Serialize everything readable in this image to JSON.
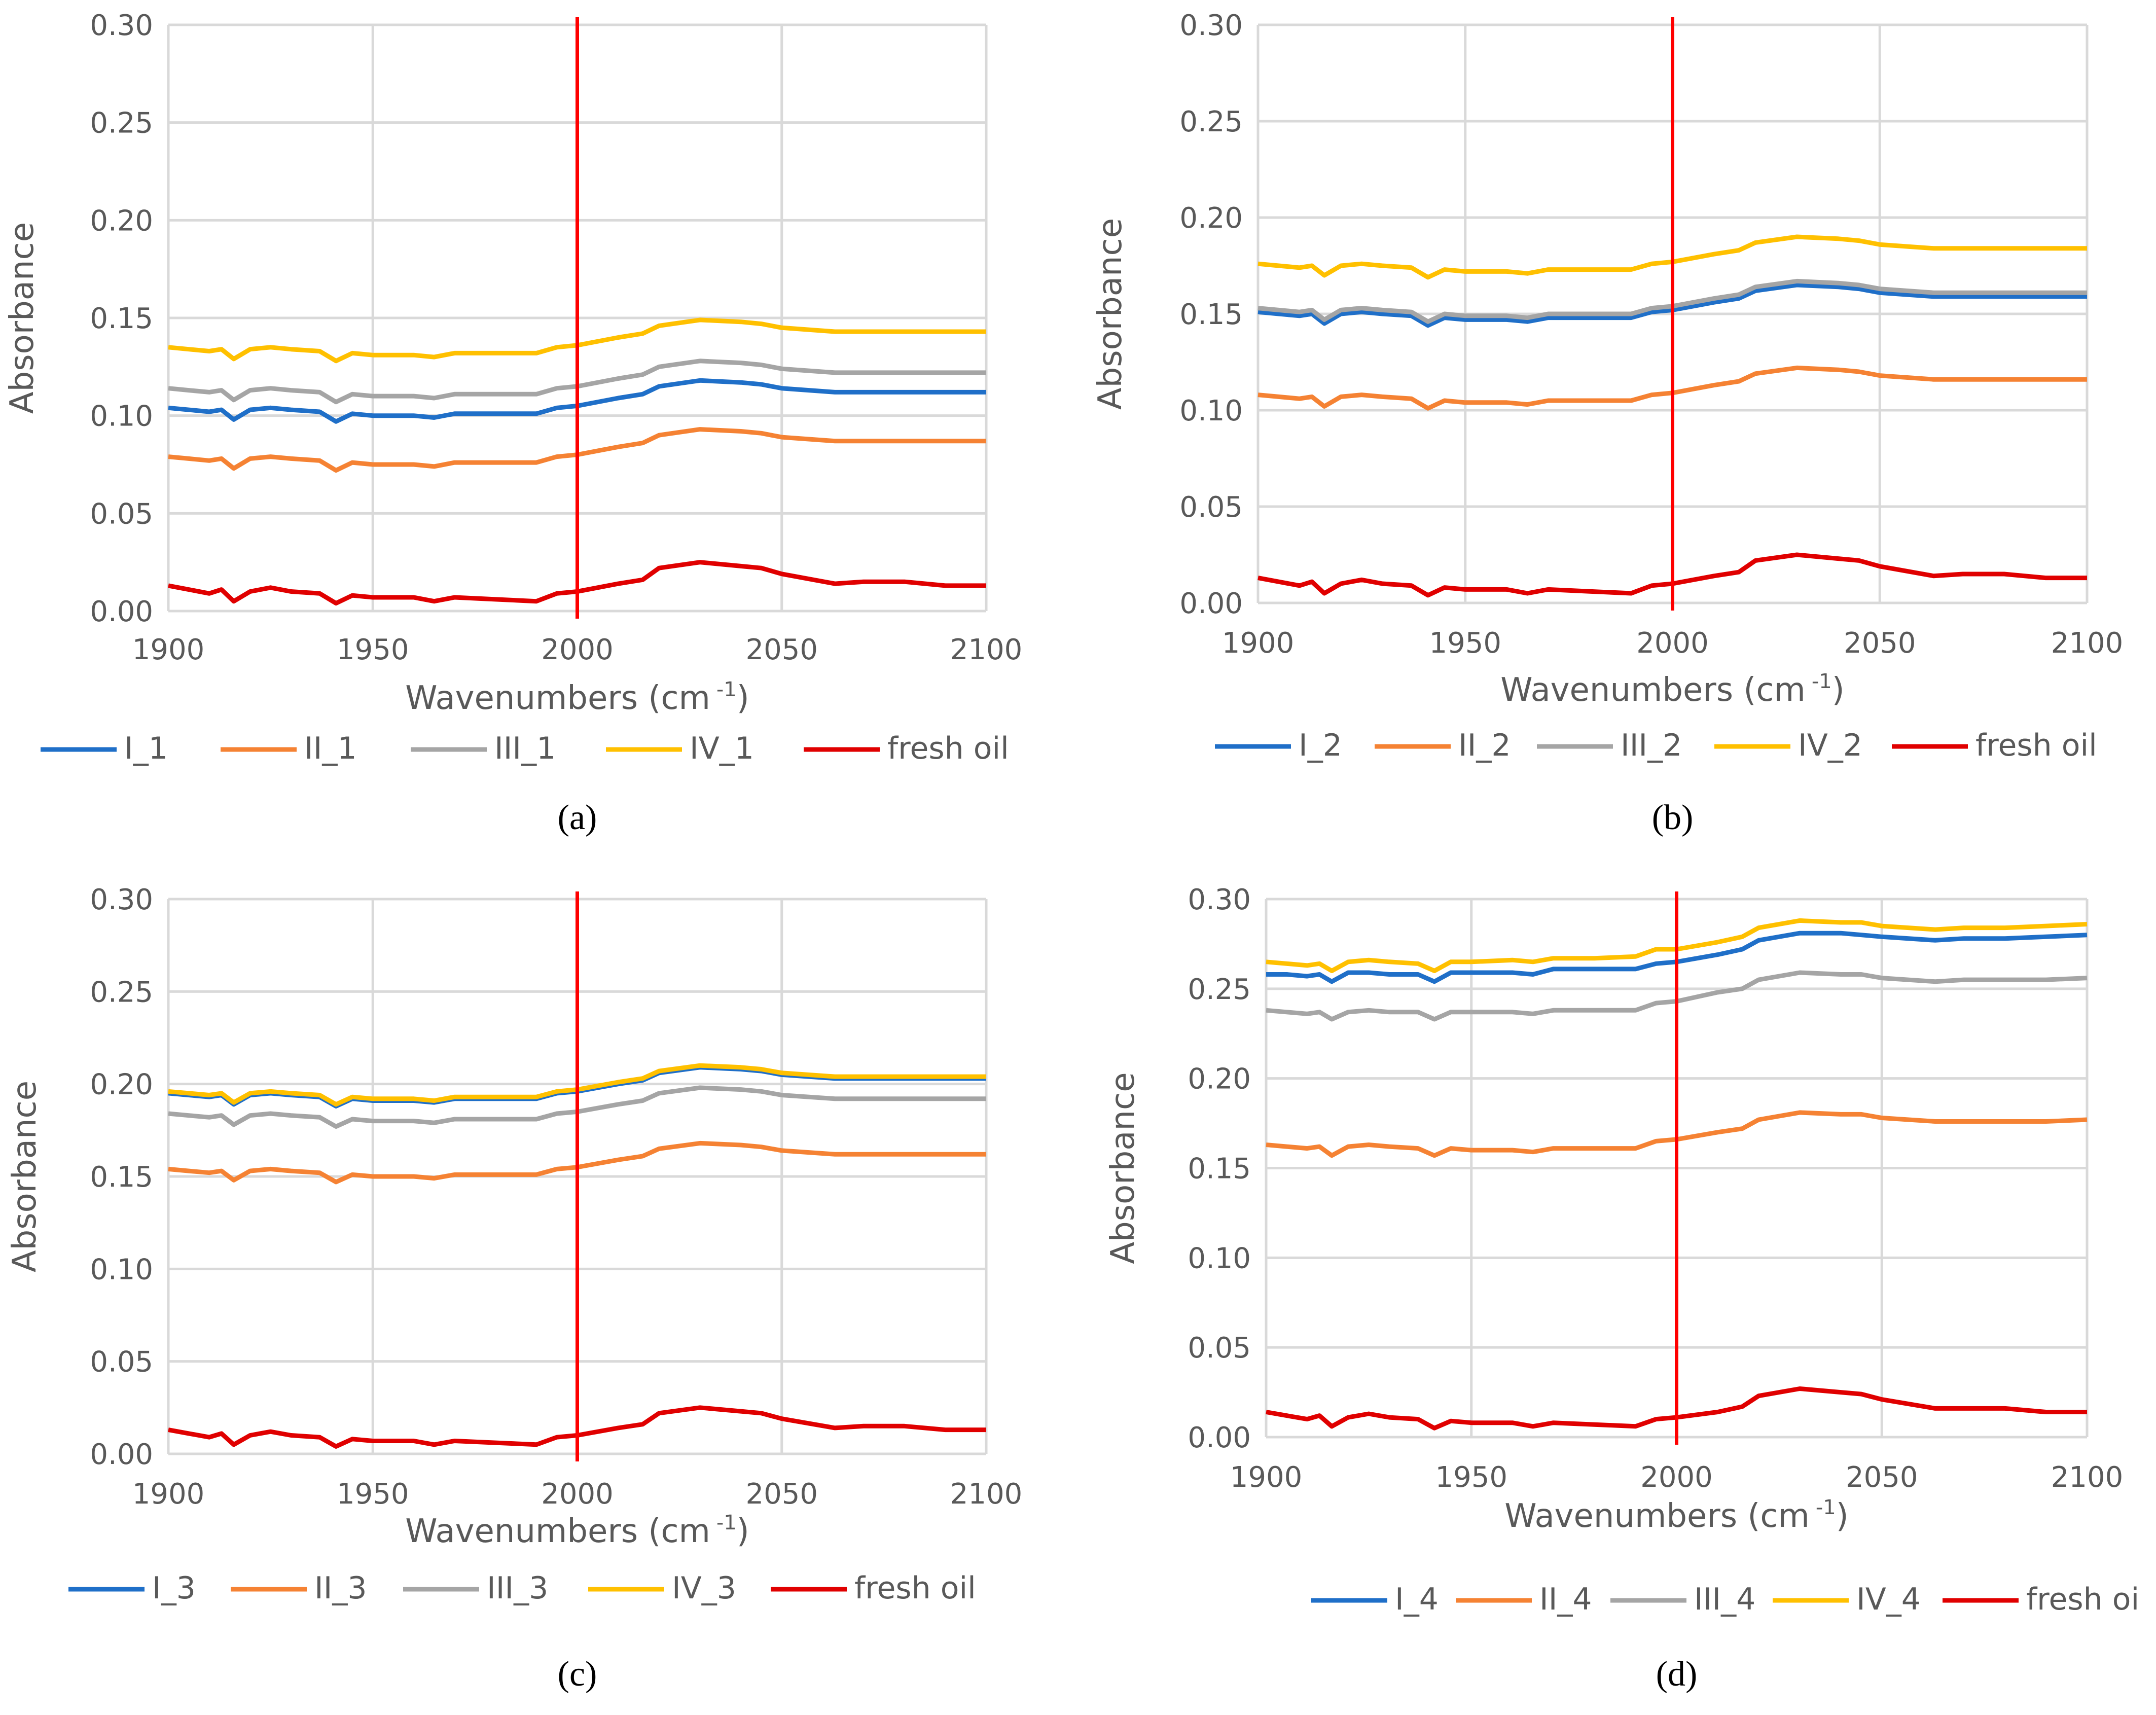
{
  "chart_data": [
    {
      "type": "line",
      "panel_label": "(a)",
      "caption_letter": "a",
      "xlabel": "Wavenumbers (cm",
      "xlabel_sup": "-1",
      "xlabel_end": ")",
      "ylabel": "Absorbance",
      "xlim": [
        1900,
        2100
      ],
      "ylim": [
        0,
        0.3
      ],
      "xticks": [
        "1900",
        "1950",
        "2000",
        "2050",
        "2100"
      ],
      "yticks": [
        "0.00",
        "0.05",
        "0.10",
        "0.15",
        "0.20",
        "0.25",
        "0.30"
      ],
      "grid": true,
      "marker_line_x": 2000,
      "marker_line_color": "#FF0000",
      "legend_position": "bottom",
      "x": [
        1900,
        1905,
        1910,
        1913,
        1916,
        1920,
        1925,
        1930,
        1937,
        1941,
        1945,
        1950,
        1960,
        1965,
        1970,
        1980,
        1990,
        1995,
        2000,
        2010,
        2016,
        2020,
        2030,
        2040,
        2045,
        2050,
        2063,
        2070,
        2080,
        2090,
        2100
      ],
      "series": [
        {
          "name": "I_1",
          "color": "#1F6FC8",
          "values": [
            0.104,
            0.103,
            0.102,
            0.103,
            0.098,
            0.103,
            0.104,
            0.103,
            0.102,
            0.097,
            0.101,
            0.1,
            0.1,
            0.099,
            0.101,
            0.101,
            0.101,
            0.104,
            0.105,
            0.109,
            0.111,
            0.115,
            0.118,
            0.117,
            0.116,
            0.114,
            0.112,
            0.112,
            0.112,
            0.112,
            0.112
          ]
        },
        {
          "name": "II_1",
          "color": "#F58233",
          "values": [
            0.079,
            0.078,
            0.077,
            0.078,
            0.073,
            0.078,
            0.079,
            0.078,
            0.077,
            0.072,
            0.076,
            0.075,
            0.075,
            0.074,
            0.076,
            0.076,
            0.076,
            0.079,
            0.08,
            0.084,
            0.086,
            0.09,
            0.093,
            0.092,
            0.091,
            0.089,
            0.087,
            0.087,
            0.087,
            0.087,
            0.087
          ]
        },
        {
          "name": "III_1",
          "color": "#A5A5A5",
          "values": [
            0.114,
            0.113,
            0.112,
            0.113,
            0.108,
            0.113,
            0.114,
            0.113,
            0.112,
            0.107,
            0.111,
            0.11,
            0.11,
            0.109,
            0.111,
            0.111,
            0.111,
            0.114,
            0.115,
            0.119,
            0.121,
            0.125,
            0.128,
            0.127,
            0.126,
            0.124,
            0.122,
            0.122,
            0.122,
            0.122,
            0.122
          ]
        },
        {
          "name": "IV_1",
          "color": "#FFC000",
          "values": [
            0.135,
            0.134,
            0.133,
            0.134,
            0.129,
            0.134,
            0.135,
            0.134,
            0.133,
            0.128,
            0.132,
            0.131,
            0.131,
            0.13,
            0.132,
            0.132,
            0.132,
            0.135,
            0.136,
            0.14,
            0.142,
            0.146,
            0.149,
            0.148,
            0.147,
            0.145,
            0.143,
            0.143,
            0.143,
            0.143,
            0.143
          ]
        },
        {
          "name": "fresh oil",
          "color": "#E00000",
          "values": [
            0.013,
            0.011,
            0.009,
            0.011,
            0.005,
            0.01,
            0.012,
            0.01,
            0.009,
            0.004,
            0.008,
            0.007,
            0.007,
            0.005,
            0.007,
            0.006,
            0.005,
            0.009,
            0.01,
            0.014,
            0.016,
            0.022,
            0.025,
            0.023,
            0.022,
            0.019,
            0.014,
            0.015,
            0.015,
            0.013,
            0.013
          ]
        }
      ]
    },
    {
      "type": "line",
      "panel_label": "(b)",
      "caption_letter": "b",
      "xlabel": "Wavenumbers (cm",
      "xlabel_sup": "-1",
      "xlabel_end": ")",
      "ylabel": "Absorbance",
      "xlim": [
        1900,
        2100
      ],
      "ylim": [
        0,
        0.3
      ],
      "xticks": [
        "1900",
        "1950",
        "2000",
        "2050",
        "2100"
      ],
      "yticks": [
        "0.00",
        "0.05",
        "0.10",
        "0.15",
        "0.20",
        "0.25",
        "0.30"
      ],
      "grid": true,
      "marker_line_x": 2000,
      "marker_line_color": "#FF0000",
      "legend_position": "bottom",
      "x": [
        1900,
        1905,
        1910,
        1913,
        1916,
        1920,
        1925,
        1930,
        1937,
        1941,
        1945,
        1950,
        1960,
        1965,
        1970,
        1980,
        1990,
        1995,
        2000,
        2010,
        2016,
        2020,
        2030,
        2040,
        2045,
        2050,
        2063,
        2070,
        2080,
        2090,
        2100
      ],
      "series": [
        {
          "name": "I_2",
          "color": "#1F6FC8",
          "values": [
            0.151,
            0.15,
            0.149,
            0.15,
            0.145,
            0.15,
            0.151,
            0.15,
            0.149,
            0.144,
            0.148,
            0.147,
            0.147,
            0.146,
            0.148,
            0.148,
            0.148,
            0.151,
            0.152,
            0.156,
            0.158,
            0.162,
            0.165,
            0.164,
            0.163,
            0.161,
            0.159,
            0.159,
            0.159,
            0.159,
            0.159
          ]
        },
        {
          "name": "II_2",
          "color": "#F58233",
          "values": [
            0.108,
            0.107,
            0.106,
            0.107,
            0.102,
            0.107,
            0.108,
            0.107,
            0.106,
            0.101,
            0.105,
            0.104,
            0.104,
            0.103,
            0.105,
            0.105,
            0.105,
            0.108,
            0.109,
            0.113,
            0.115,
            0.119,
            0.122,
            0.121,
            0.12,
            0.118,
            0.116,
            0.116,
            0.116,
            0.116,
            0.116
          ]
        },
        {
          "name": "III_2",
          "color": "#A5A5A5",
          "values": [
            0.153,
            0.152,
            0.151,
            0.152,
            0.147,
            0.152,
            0.153,
            0.152,
            0.151,
            0.146,
            0.15,
            0.149,
            0.149,
            0.148,
            0.15,
            0.15,
            0.15,
            0.153,
            0.154,
            0.158,
            0.16,
            0.164,
            0.167,
            0.166,
            0.165,
            0.163,
            0.161,
            0.161,
            0.161,
            0.161,
            0.161
          ]
        },
        {
          "name": "IV_2",
          "color": "#FFC000",
          "values": [
            0.176,
            0.175,
            0.174,
            0.175,
            0.17,
            0.175,
            0.176,
            0.175,
            0.174,
            0.169,
            0.173,
            0.172,
            0.172,
            0.171,
            0.173,
            0.173,
            0.173,
            0.176,
            0.177,
            0.181,
            0.183,
            0.187,
            0.19,
            0.189,
            0.188,
            0.186,
            0.184,
            0.184,
            0.184,
            0.184,
            0.184
          ]
        },
        {
          "name": "fresh oil",
          "color": "#E00000",
          "values": [
            0.013,
            0.011,
            0.009,
            0.011,
            0.005,
            0.01,
            0.012,
            0.01,
            0.009,
            0.004,
            0.008,
            0.007,
            0.007,
            0.005,
            0.007,
            0.006,
            0.005,
            0.009,
            0.01,
            0.014,
            0.016,
            0.022,
            0.025,
            0.023,
            0.022,
            0.019,
            0.014,
            0.015,
            0.015,
            0.013,
            0.013
          ]
        }
      ]
    },
    {
      "type": "line",
      "panel_label": "(c)",
      "caption_letter": "c",
      "xlabel": "Wavenumbers (cm",
      "xlabel_sup": "-1",
      "xlabel_end": ")",
      "ylabel": "Absorbance",
      "xlim": [
        1900,
        2100
      ],
      "ylim": [
        0,
        0.3
      ],
      "xticks": [
        "1900",
        "1950",
        "2000",
        "2050",
        "2100"
      ],
      "yticks": [
        "0.00",
        "0.05",
        "0.10",
        "0.15",
        "0.20",
        "0.25",
        "0.30"
      ],
      "grid": true,
      "marker_line_x": 2000,
      "marker_line_color": "#FF0000",
      "legend_position": "bottom",
      "x": [
        1900,
        1905,
        1910,
        1913,
        1916,
        1920,
        1925,
        1930,
        1937,
        1941,
        1945,
        1950,
        1960,
        1965,
        1970,
        1980,
        1990,
        1995,
        2000,
        2010,
        2016,
        2020,
        2030,
        2040,
        2045,
        2050,
        2063,
        2070,
        2080,
        2090,
        2100
      ],
      "series": [
        {
          "name": "I_3",
          "color": "#1F6FC8",
          "values": [
            0.195,
            0.194,
            0.193,
            0.194,
            0.189,
            0.194,
            0.195,
            0.194,
            0.193,
            0.188,
            0.192,
            0.191,
            0.191,
            0.19,
            0.192,
            0.192,
            0.192,
            0.195,
            0.196,
            0.2,
            0.202,
            0.206,
            0.209,
            0.208,
            0.207,
            0.205,
            0.203,
            0.203,
            0.203,
            0.203,
            0.203
          ]
        },
        {
          "name": "II_3",
          "color": "#F58233",
          "values": [
            0.154,
            0.153,
            0.152,
            0.153,
            0.148,
            0.153,
            0.154,
            0.153,
            0.152,
            0.147,
            0.151,
            0.15,
            0.15,
            0.149,
            0.151,
            0.151,
            0.151,
            0.154,
            0.155,
            0.159,
            0.161,
            0.165,
            0.168,
            0.167,
            0.166,
            0.164,
            0.162,
            0.162,
            0.162,
            0.162,
            0.162
          ]
        },
        {
          "name": "III_3",
          "color": "#A5A5A5",
          "values": [
            0.184,
            0.183,
            0.182,
            0.183,
            0.178,
            0.183,
            0.184,
            0.183,
            0.182,
            0.177,
            0.181,
            0.18,
            0.18,
            0.179,
            0.181,
            0.181,
            0.181,
            0.184,
            0.185,
            0.189,
            0.191,
            0.195,
            0.198,
            0.197,
            0.196,
            0.194,
            0.192,
            0.192,
            0.192,
            0.192,
            0.192
          ]
        },
        {
          "name": "IV_3",
          "color": "#FFC000",
          "values": [
            0.196,
            0.195,
            0.194,
            0.195,
            0.19,
            0.195,
            0.196,
            0.195,
            0.194,
            0.189,
            0.193,
            0.192,
            0.192,
            0.191,
            0.193,
            0.193,
            0.193,
            0.196,
            0.197,
            0.201,
            0.203,
            0.207,
            0.21,
            0.209,
            0.208,
            0.206,
            0.204,
            0.204,
            0.204,
            0.204,
            0.204
          ]
        },
        {
          "name": "fresh oil",
          "color": "#E00000",
          "values": [
            0.013,
            0.011,
            0.009,
            0.011,
            0.005,
            0.01,
            0.012,
            0.01,
            0.009,
            0.004,
            0.008,
            0.007,
            0.007,
            0.005,
            0.007,
            0.006,
            0.005,
            0.009,
            0.01,
            0.014,
            0.016,
            0.022,
            0.025,
            0.023,
            0.022,
            0.019,
            0.014,
            0.015,
            0.015,
            0.013,
            0.013
          ]
        }
      ]
    },
    {
      "type": "line",
      "panel_label": "(d)",
      "caption_letter": "d",
      "xlabel": "Wavenumbers (cm",
      "xlabel_sup": "-1",
      "xlabel_end": ")",
      "ylabel": "Absorbance",
      "xlim": [
        1900,
        2100
      ],
      "ylim": [
        0,
        0.3
      ],
      "xticks": [
        "1900",
        "1950",
        "2000",
        "2050",
        "2100"
      ],
      "yticks": [
        "0.00",
        "0.05",
        "0.10",
        "0.15",
        "0.20",
        "0.25",
        "0.30"
      ],
      "grid": true,
      "marker_line_x": 2000,
      "marker_line_color": "#FF0000",
      "legend_position": "bottom",
      "legend_truncated_label": "fresh oi",
      "x": [
        1900,
        1905,
        1910,
        1913,
        1916,
        1920,
        1925,
        1930,
        1937,
        1941,
        1945,
        1950,
        1960,
        1965,
        1970,
        1980,
        1990,
        1995,
        2000,
        2010,
        2016,
        2020,
        2030,
        2040,
        2045,
        2050,
        2063,
        2070,
        2080,
        2090,
        2100
      ],
      "series": [
        {
          "name": "I_4",
          "color": "#1F6FC8",
          "values": [
            0.258,
            0.258,
            0.257,
            0.258,
            0.254,
            0.259,
            0.259,
            0.258,
            0.258,
            0.254,
            0.259,
            0.259,
            0.259,
            0.258,
            0.261,
            0.261,
            0.261,
            0.264,
            0.265,
            0.269,
            0.272,
            0.277,
            0.281,
            0.281,
            0.28,
            0.279,
            0.277,
            0.278,
            0.278,
            0.279,
            0.28
          ]
        },
        {
          "name": "II_4",
          "color": "#F58233",
          "values": [
            0.163,
            0.162,
            0.161,
            0.162,
            0.157,
            0.162,
            0.163,
            0.162,
            0.161,
            0.157,
            0.161,
            0.16,
            0.16,
            0.159,
            0.161,
            0.161,
            0.161,
            0.165,
            0.166,
            0.17,
            0.172,
            0.177,
            0.181,
            0.18,
            0.18,
            0.178,
            0.176,
            0.176,
            0.176,
            0.176,
            0.177
          ]
        },
        {
          "name": "III_4",
          "color": "#A5A5A5",
          "values": [
            0.238,
            0.237,
            0.236,
            0.237,
            0.233,
            0.237,
            0.238,
            0.237,
            0.237,
            0.233,
            0.237,
            0.237,
            0.237,
            0.236,
            0.238,
            0.238,
            0.238,
            0.242,
            0.243,
            0.248,
            0.25,
            0.255,
            0.259,
            0.258,
            0.258,
            0.256,
            0.254,
            0.255,
            0.255,
            0.255,
            0.256
          ]
        },
        {
          "name": "IV_4",
          "color": "#FFC000",
          "values": [
            0.265,
            0.264,
            0.263,
            0.264,
            0.26,
            0.265,
            0.266,
            0.265,
            0.264,
            0.26,
            0.265,
            0.265,
            0.266,
            0.265,
            0.267,
            0.267,
            0.268,
            0.272,
            0.272,
            0.276,
            0.279,
            0.284,
            0.288,
            0.287,
            0.287,
            0.285,
            0.283,
            0.284,
            0.284,
            0.285,
            0.286
          ]
        },
        {
          "name": "fresh oil",
          "color": "#E00000",
          "values": [
            0.014,
            0.012,
            0.01,
            0.012,
            0.006,
            0.011,
            0.013,
            0.011,
            0.01,
            0.005,
            0.009,
            0.008,
            0.008,
            0.006,
            0.008,
            0.007,
            0.006,
            0.01,
            0.011,
            0.014,
            0.017,
            0.023,
            0.027,
            0.025,
            0.024,
            0.021,
            0.016,
            0.016,
            0.016,
            0.014,
            0.014
          ]
        }
      ]
    }
  ]
}
